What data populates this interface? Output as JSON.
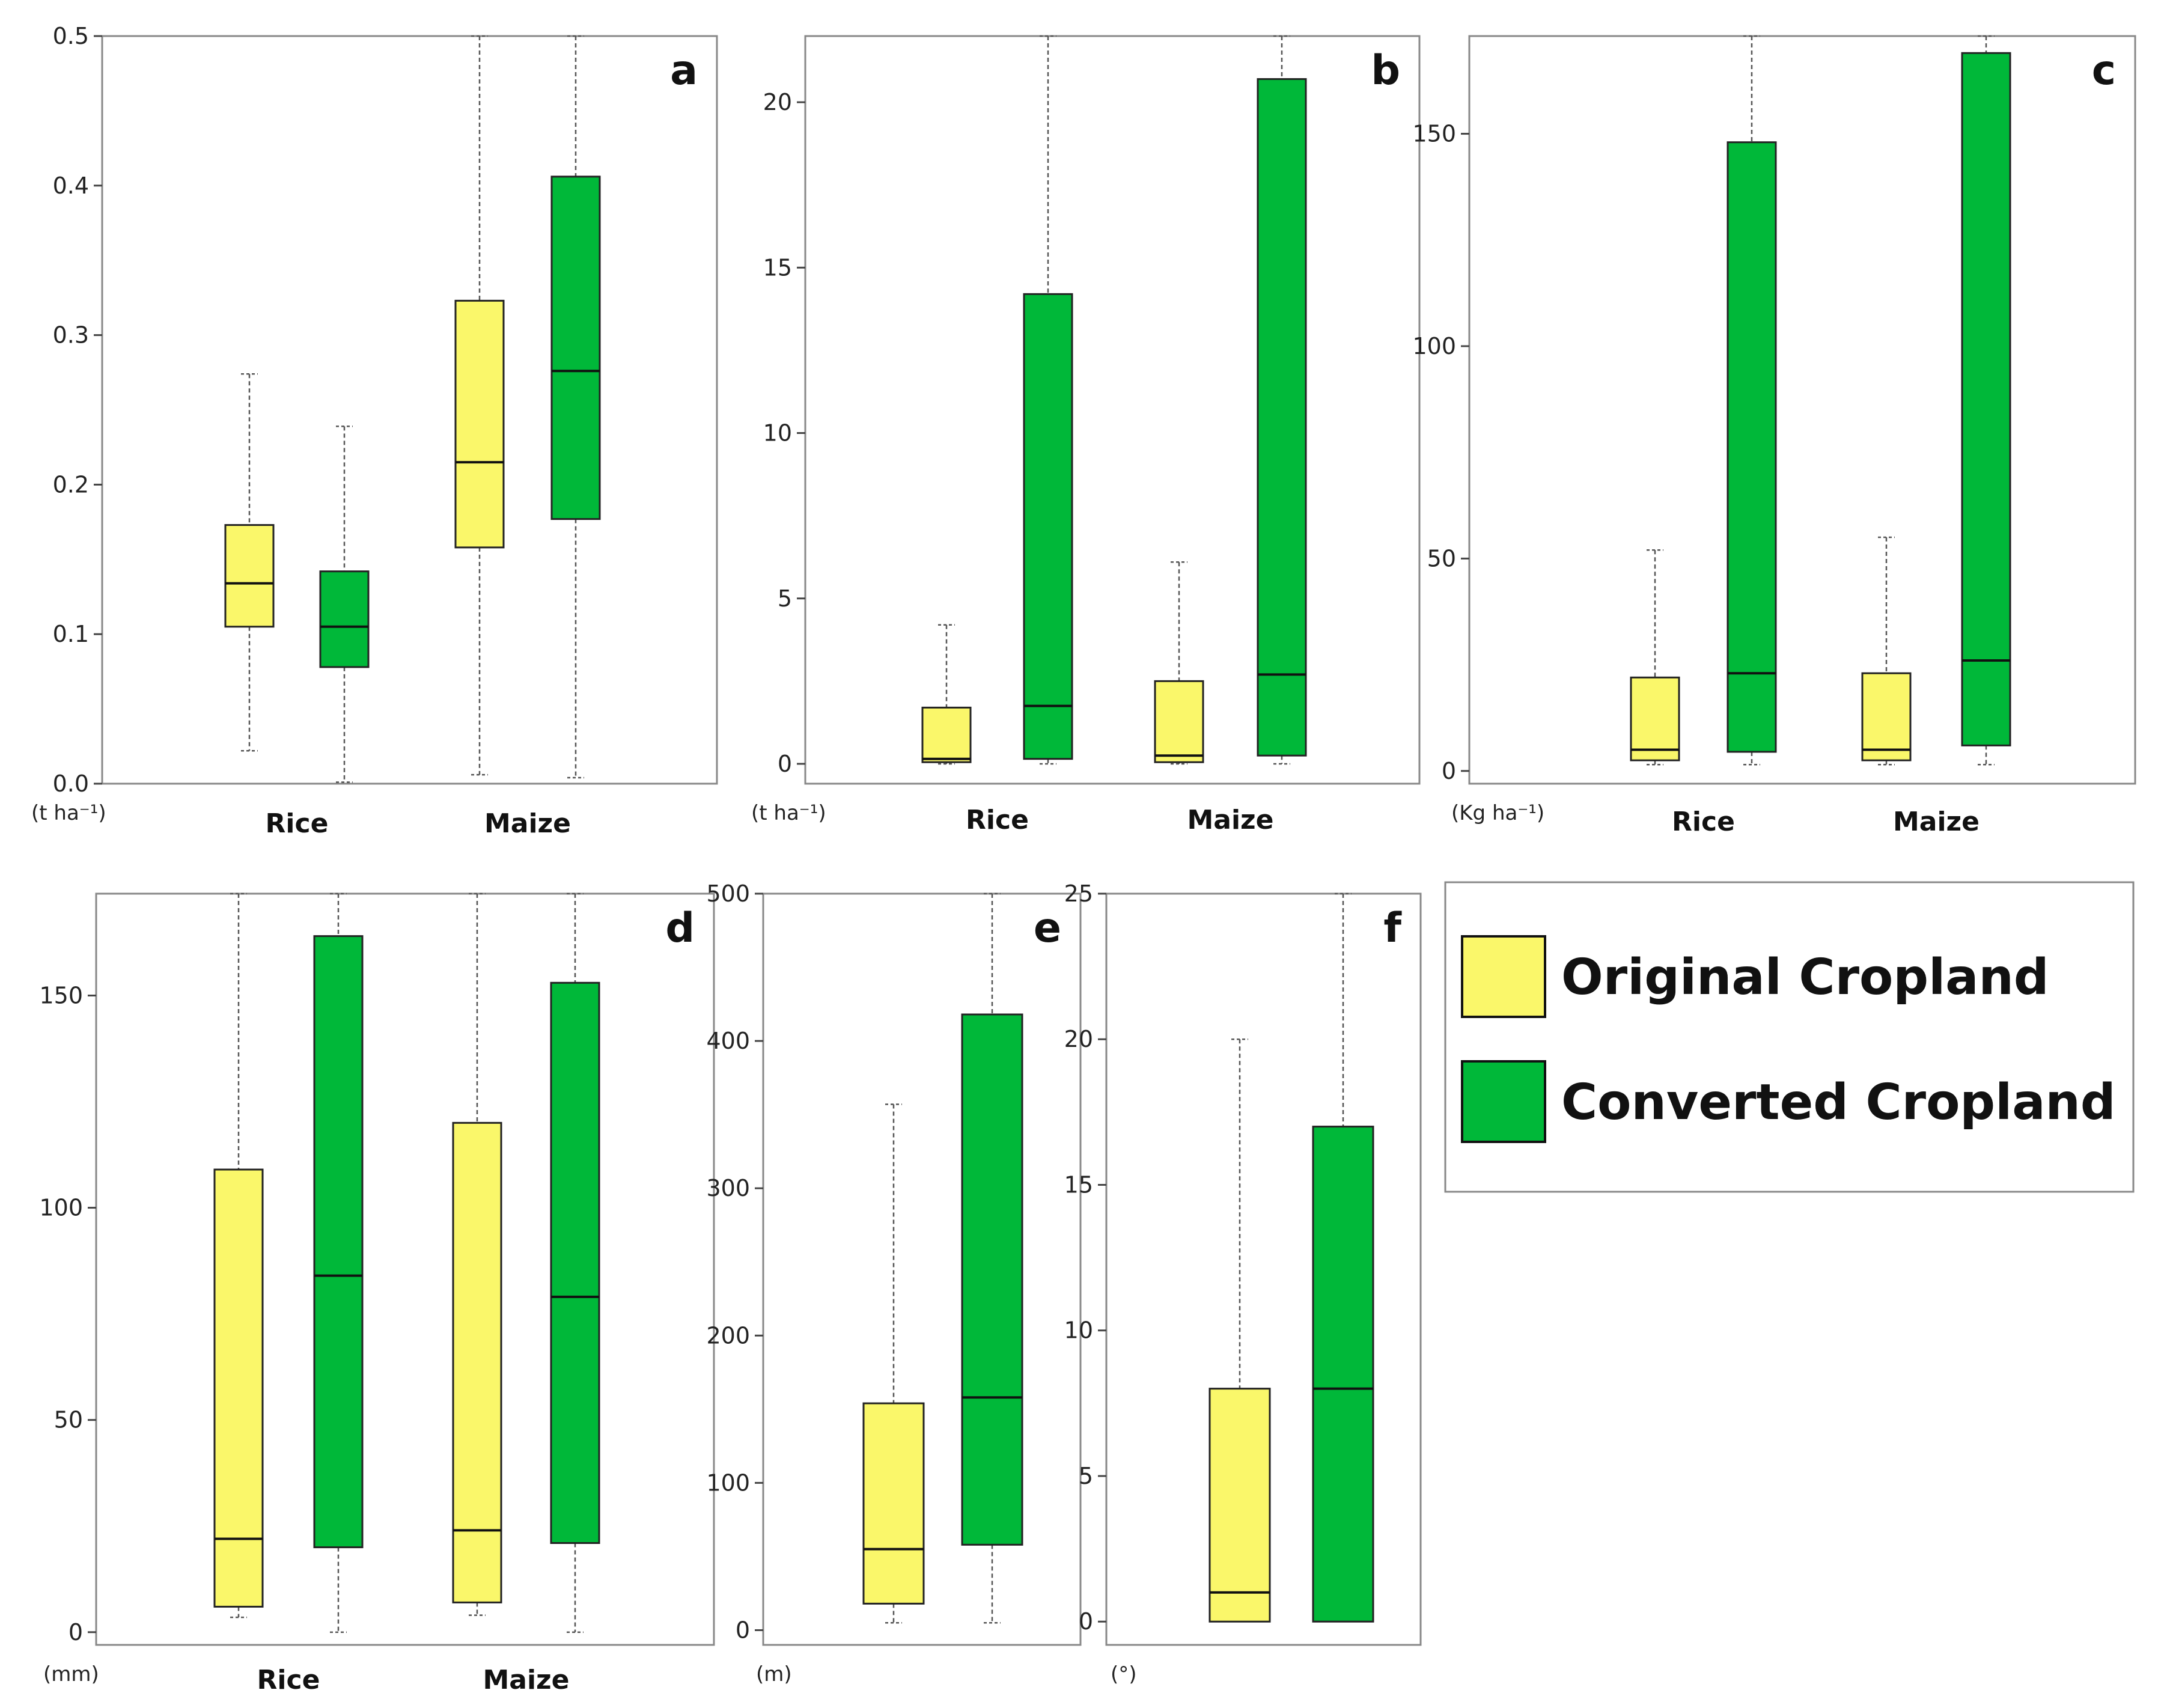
{
  "colors": {
    "original": "#FAF76A",
    "converted": "#00B839",
    "frame": "#888888",
    "whisker": "#555555"
  },
  "legend": {
    "items": [
      {
        "label": "Original Cropland",
        "color": "#FAF76A"
      },
      {
        "label": "Converted Cropland",
        "color": "#00B839"
      }
    ]
  },
  "chart_data": [
    {
      "type": "boxplot",
      "panel": "a",
      "unit": "(t ha⁻¹)",
      "categories": [
        "Rice",
        "Maize"
      ],
      "ylim": [
        0,
        0.5
      ],
      "yticks": [
        "0.0",
        "0.1",
        "0.2",
        "0.3",
        "0.4",
        "0.5"
      ],
      "ytick_values": [
        0,
        0.1,
        0.2,
        0.3,
        0.4,
        0.5
      ],
      "series": [
        {
          "name": "Original Cropland",
          "color": "#FAF76A",
          "boxes": [
            {
              "category": "Rice",
              "min": 0.022,
              "q1": 0.105,
              "median": 0.134,
              "q3": 0.173,
              "max": 0.274
            },
            {
              "category": "Maize",
              "min": 0.006,
              "q1": 0.158,
              "median": 0.215,
              "q3": 0.323,
              "max": 0.5
            }
          ]
        },
        {
          "name": "Converted Cropland",
          "color": "#00B839",
          "boxes": [
            {
              "category": "Rice",
              "min": 0.001,
              "q1": 0.078,
              "median": 0.105,
              "q3": 0.142,
              "max": 0.239
            },
            {
              "category": "Maize",
              "min": 0.004,
              "q1": 0.177,
              "median": 0.276,
              "q3": 0.406,
              "max": 0.5
            }
          ]
        }
      ]
    },
    {
      "type": "boxplot",
      "panel": "b",
      "unit": "(t ha⁻¹)",
      "categories": [
        "Rice",
        "Maize"
      ],
      "ylim": [
        -0.6,
        22.0
      ],
      "yticks": [
        "0",
        "5",
        "10",
        "15",
        "20"
      ],
      "ytick_values": [
        0,
        5,
        10,
        15,
        20
      ],
      "series": [
        {
          "name": "Original Cropland",
          "color": "#FAF76A",
          "boxes": [
            {
              "category": "Rice",
              "min": 0.0,
              "q1": 0.05,
              "median": 0.15,
              "q3": 1.7,
              "max": 4.2
            },
            {
              "category": "Maize",
              "min": 0.0,
              "q1": 0.05,
              "median": 0.25,
              "q3": 2.5,
              "max": 6.1
            }
          ]
        },
        {
          "name": "Converted Cropland",
          "color": "#00B839",
          "boxes": [
            {
              "category": "Rice",
              "min": 0.0,
              "q1": 0.15,
              "median": 1.75,
              "q3": 14.2,
              "max": 22.0
            },
            {
              "category": "Maize",
              "min": 0.0,
              "q1": 0.25,
              "median": 2.7,
              "q3": 20.7,
              "max": 22.0
            }
          ]
        }
      ]
    },
    {
      "type": "boxplot",
      "panel": "c",
      "unit": "(Kg ha⁻¹)",
      "categories": [
        "Rice",
        "Maize"
      ],
      "ylim": [
        -3,
        173
      ],
      "yticks": [
        "0",
        "50",
        "100",
        "150"
      ],
      "ytick_values": [
        0,
        50,
        100,
        150
      ],
      "series": [
        {
          "name": "Original Cropland",
          "color": "#FAF76A",
          "boxes": [
            {
              "category": "Rice",
              "min": 1.5,
              "q1": 2.5,
              "median": 5,
              "q3": 22,
              "max": 52
            },
            {
              "category": "Maize",
              "min": 1.5,
              "q1": 2.5,
              "median": 5,
              "q3": 23,
              "max": 55
            }
          ]
        },
        {
          "name": "Converted Cropland",
          "color": "#00B839",
          "boxes": [
            {
              "category": "Rice",
              "min": 1.5,
              "q1": 4.5,
              "median": 23,
              "q3": 148,
              "max": 173
            },
            {
              "category": "Maize",
              "min": 1.5,
              "q1": 6,
              "median": 26,
              "q3": 169,
              "max": 173
            }
          ]
        }
      ]
    },
    {
      "type": "boxplot",
      "panel": "d",
      "unit": "(mm)",
      "categories": [
        "Rice",
        "Maize"
      ],
      "ylim": [
        -3,
        174
      ],
      "yticks": [
        "0",
        "50",
        "100",
        "150"
      ],
      "ytick_values": [
        0,
        50,
        100,
        150
      ],
      "series": [
        {
          "name": "Original Cropland",
          "color": "#FAF76A",
          "boxes": [
            {
              "category": "Rice",
              "min": 3.5,
              "q1": 6,
              "median": 22,
              "q3": 109,
              "max": 174
            },
            {
              "category": "Maize",
              "min": 4,
              "q1": 7,
              "median": 24,
              "q3": 120,
              "max": 174
            }
          ]
        },
        {
          "name": "Converted Cropland",
          "color": "#00B839",
          "boxes": [
            {
              "category": "Rice",
              "min": 0,
              "q1": 20,
              "median": 84,
              "q3": 164,
              "max": 174
            },
            {
              "category": "Maize",
              "min": 0,
              "q1": 21,
              "median": 79,
              "q3": 153,
              "max": 174
            }
          ]
        }
      ]
    },
    {
      "type": "boxplot",
      "panel": "e",
      "unit": "(m)",
      "categories": [],
      "ylim": [
        -10,
        500
      ],
      "yticks": [
        "0",
        "100",
        "200",
        "300",
        "400",
        "500"
      ],
      "ytick_values": [
        0,
        100,
        200,
        300,
        400,
        500
      ],
      "series": [
        {
          "name": "Original Cropland",
          "color": "#FAF76A",
          "boxes": [
            {
              "category": "",
              "min": 5,
              "q1": 18,
              "median": 55,
              "q3": 154,
              "max": 357
            }
          ]
        },
        {
          "name": "Converted Cropland",
          "color": "#00B839",
          "boxes": [
            {
              "category": "",
              "min": 5,
              "q1": 58,
              "median": 158,
              "q3": 418,
              "max": 500
            }
          ]
        }
      ]
    },
    {
      "type": "boxplot",
      "panel": "f",
      "unit": "(°)",
      "categories": [],
      "ylim": [
        -0.8,
        25
      ],
      "yticks": [
        "0",
        "5",
        "10",
        "15",
        "20",
        "25"
      ],
      "ytick_values": [
        0,
        5,
        10,
        15,
        20,
        25
      ],
      "series": [
        {
          "name": "Original Cropland",
          "color": "#FAF76A",
          "boxes": [
            {
              "category": "",
              "min": 0,
              "q1": 0,
              "median": 1,
              "q3": 8,
              "max": 20
            }
          ]
        },
        {
          "name": "Converted Cropland",
          "color": "#00B839",
          "boxes": [
            {
              "category": "",
              "min": 0,
              "q1": 0,
              "median": 8,
              "q3": 17,
              "max": 25
            }
          ]
        }
      ]
    }
  ]
}
